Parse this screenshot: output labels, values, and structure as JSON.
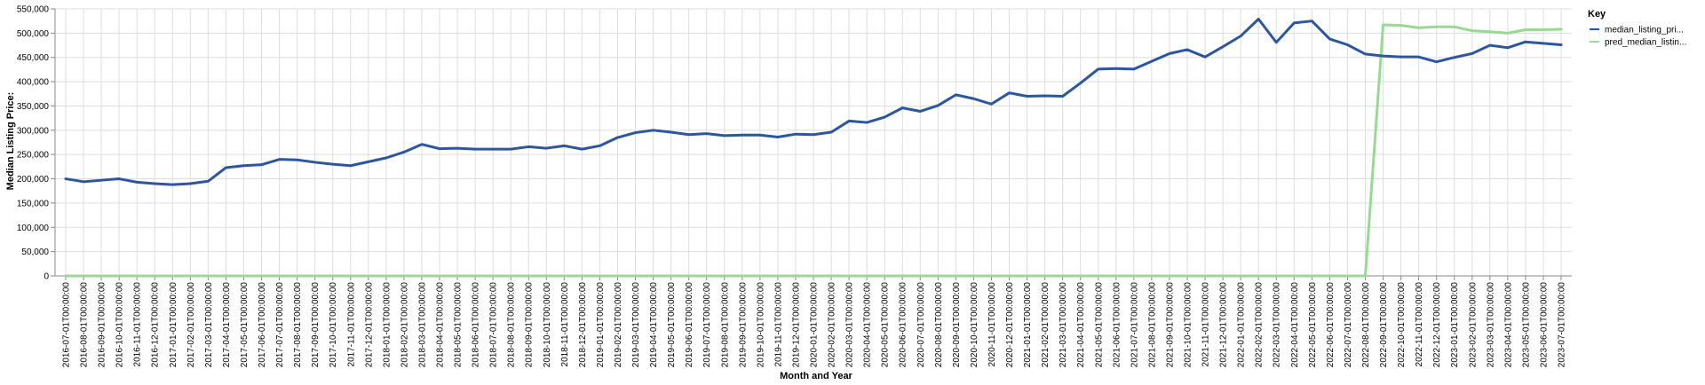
{
  "chart_data": {
    "type": "line",
    "xlabel": "Month and Year",
    "ylabel": "Median Listing Price:",
    "ylim": [
      0,
      550000
    ],
    "yticks": [
      "0",
      "50,000",
      "100,000",
      "150,000",
      "200,000",
      "250,000",
      "300,000",
      "350,000",
      "400,000",
      "450,000",
      "500,000",
      "550,000"
    ],
    "grid": true,
    "legend": {
      "title": "Key",
      "position": "right"
    },
    "x": [
      "2016-07-01T00:00:00",
      "2016-08-01T00:00:00",
      "2016-09-01T00:00:00",
      "2016-10-01T00:00:00",
      "2016-11-01T00:00:00",
      "2016-12-01T00:00:00",
      "2017-01-01T00:00:00",
      "2017-02-01T00:00:00",
      "2017-03-01T00:00:00",
      "2017-04-01T00:00:00",
      "2017-05-01T00:00:00",
      "2017-06-01T00:00:00",
      "2017-07-01T00:00:00",
      "2017-08-01T00:00:00",
      "2017-09-01T00:00:00",
      "2017-10-01T00:00:00",
      "2017-11-01T00:00:00",
      "2017-12-01T00:00:00",
      "2018-01-01T00:00:00",
      "2018-02-01T00:00:00",
      "2018-03-01T00:00:00",
      "2018-04-01T00:00:00",
      "2018-05-01T00:00:00",
      "2018-06-01T00:00:00",
      "2018-07-01T00:00:00",
      "2018-08-01T00:00:00",
      "2018-09-01T00:00:00",
      "2018-10-01T00:00:00",
      "2018-11-01T00:00:00",
      "2018-12-01T00:00:00",
      "2019-01-01T00:00:00",
      "2019-02-01T00:00:00",
      "2019-03-01T00:00:00",
      "2019-04-01T00:00:00",
      "2019-05-01T00:00:00",
      "2019-06-01T00:00:00",
      "2019-07-01T00:00:00",
      "2019-08-01T00:00:00",
      "2019-09-01T00:00:00",
      "2019-10-01T00:00:00",
      "2019-11-01T00:00:00",
      "2019-12-01T00:00:00",
      "2020-01-01T00:00:00",
      "2020-02-01T00:00:00",
      "2020-03-01T00:00:00",
      "2020-04-01T00:00:00",
      "2020-05-01T00:00:00",
      "2020-06-01T00:00:00",
      "2020-07-01T00:00:00",
      "2020-08-01T00:00:00",
      "2020-09-01T00:00:00",
      "2020-10-01T00:00:00",
      "2020-11-01T00:00:00",
      "2020-12-01T00:00:00",
      "2021-01-01T00:00:00",
      "2021-02-01T00:00:00",
      "2021-03-01T00:00:00",
      "2021-04-01T00:00:00",
      "2021-05-01T00:00:00",
      "2021-06-01T00:00:00",
      "2021-07-01T00:00:00",
      "2021-08-01T00:00:00",
      "2021-09-01T00:00:00",
      "2021-10-01T00:00:00",
      "2021-11-01T00:00:00",
      "2021-12-01T00:00:00",
      "2022-01-01T00:00:00",
      "2022-02-01T00:00:00",
      "2022-03-01T00:00:00",
      "2022-04-01T00:00:00",
      "2022-05-01T00:00:00",
      "2022-06-01T00:00:00",
      "2022-07-01T00:00:00",
      "2022-08-01T00:00:00",
      "2022-09-01T00:00:00",
      "2022-10-01T00:00:00",
      "2022-11-01T00:00:00",
      "2022-12-01T00:00:00",
      "2023-01-01T00:00:00",
      "2023-02-01T00:00:00",
      "2023-03-01T00:00:00",
      "2023-04-01T00:00:00",
      "2023-05-01T00:00:00",
      "2023-06-01T00:00:00",
      "2023-07-01T00:00:00"
    ],
    "series": [
      {
        "name": "median_listing_pri...",
        "color": "#2c56a0",
        "values": [
          200000,
          194000,
          197000,
          200000,
          193000,
          190000,
          188000,
          190000,
          195000,
          223000,
          227000,
          229000,
          240000,
          239000,
          234000,
          230000,
          227000,
          235000,
          243000,
          255000,
          271000,
          262000,
          263000,
          261000,
          261000,
          261000,
          266000,
          263000,
          268000,
          261000,
          268000,
          285000,
          295000,
          300000,
          296000,
          291000,
          293000,
          289000,
          290000,
          290000,
          286000,
          292000,
          291000,
          296000,
          319000,
          316000,
          327000,
          346000,
          339000,
          351000,
          373000,
          365000,
          354000,
          377000,
          370000,
          371000,
          370000,
          397000,
          426000,
          427000,
          426000,
          442000,
          458000,
          466000,
          451000,
          472000,
          494000,
          529000,
          481000,
          521000,
          525000,
          488000,
          476000,
          457000,
          453000,
          451000,
          451000,
          441000,
          450000,
          458000,
          475000,
          470000,
          482000,
          479000,
          476000
        ]
      },
      {
        "name": "pred_median_listin...",
        "color": "#98d993",
        "values": [
          0,
          0,
          0,
          0,
          0,
          0,
          0,
          0,
          0,
          0,
          0,
          0,
          0,
          0,
          0,
          0,
          0,
          0,
          0,
          0,
          0,
          0,
          0,
          0,
          0,
          0,
          0,
          0,
          0,
          0,
          0,
          0,
          0,
          0,
          0,
          0,
          0,
          0,
          0,
          0,
          0,
          0,
          0,
          0,
          0,
          0,
          0,
          0,
          0,
          0,
          0,
          0,
          0,
          0,
          0,
          0,
          0,
          0,
          0,
          0,
          0,
          0,
          0,
          0,
          0,
          0,
          0,
          0,
          0,
          0,
          0,
          0,
          0,
          0,
          517000,
          516000,
          511000,
          513000,
          513000,
          505000,
          503000,
          500000,
          507000,
          507000,
          508000
        ]
      }
    ]
  }
}
